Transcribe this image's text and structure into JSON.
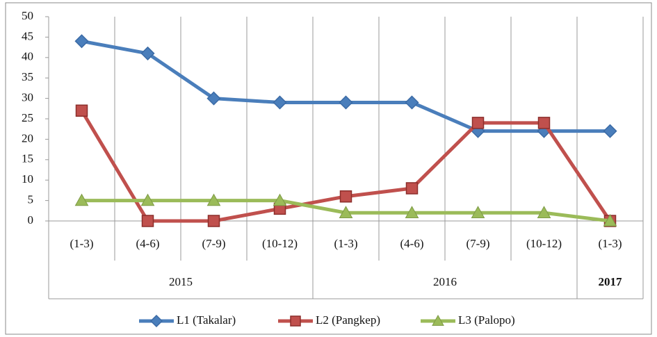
{
  "chart_data": {
    "type": "line",
    "groups": [
      {
        "name": "2015",
        "categories": [
          "(1-3)",
          "(4-6)",
          "(7-9)",
          "(10-12)"
        ]
      },
      {
        "name": "2016",
        "categories": [
          "(1-3)",
          "(4-6)",
          "(7-9)",
          "(10-12)"
        ]
      },
      {
        "name": "2017",
        "categories": [
          "(1-3)"
        ]
      }
    ],
    "series": [
      {
        "name": "L1 (Takalar)",
        "color": "#4a7ebb",
        "marker": "diamond",
        "values": [
          44,
          41,
          30,
          29,
          29,
          29,
          22,
          22,
          22
        ]
      },
      {
        "name": "L2 (Pangkep)",
        "color": "#c0504d",
        "marker": "square",
        "values": [
          27,
          0,
          0,
          3,
          6,
          8,
          24,
          24,
          0
        ]
      },
      {
        "name": "L3 (Palopo)",
        "color": "#9bbb59",
        "marker": "triangle",
        "values": [
          5,
          5,
          5,
          5,
          2,
          2,
          2,
          2,
          0
        ]
      }
    ],
    "ylim": [
      0,
      50
    ],
    "yticks": [
      0,
      5,
      10,
      15,
      20,
      25,
      30,
      35,
      40,
      45,
      50
    ],
    "legend": "bottom"
  }
}
